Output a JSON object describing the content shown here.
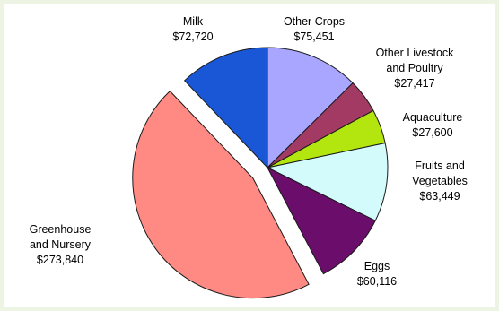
{
  "chart_data": {
    "type": "pie",
    "title": "",
    "slices": [
      {
        "name": "Milk",
        "value_text": "$72,720",
        "value": 72720,
        "color": "#1a57d6",
        "exploded": false
      },
      {
        "name": "Other Crops",
        "value_text": "$75,451",
        "value": 75451,
        "color": "#a8a6ff",
        "exploded": false
      },
      {
        "name": "Other Livestock and Poultry",
        "value_text": "$27,417",
        "value": 27417,
        "color": "#a33a63",
        "exploded": false
      },
      {
        "name": "Aquaculture",
        "value_text": "$27,600",
        "value": 27600,
        "color": "#b3e60f",
        "exploded": false
      },
      {
        "name": "Fruits and Vegetables",
        "value_text": "$63,449",
        "value": 63449,
        "color": "#d4fbfb",
        "exploded": false
      },
      {
        "name": "Eggs",
        "value_text": "$60,116",
        "value": 60116,
        "color": "#6a0d6b",
        "exploded": false
      },
      {
        "name": "Greenhouse and Nursery",
        "value_text": "$273,840",
        "value": 273840,
        "color": "#ff8a84",
        "exploded": true
      }
    ]
  }
}
